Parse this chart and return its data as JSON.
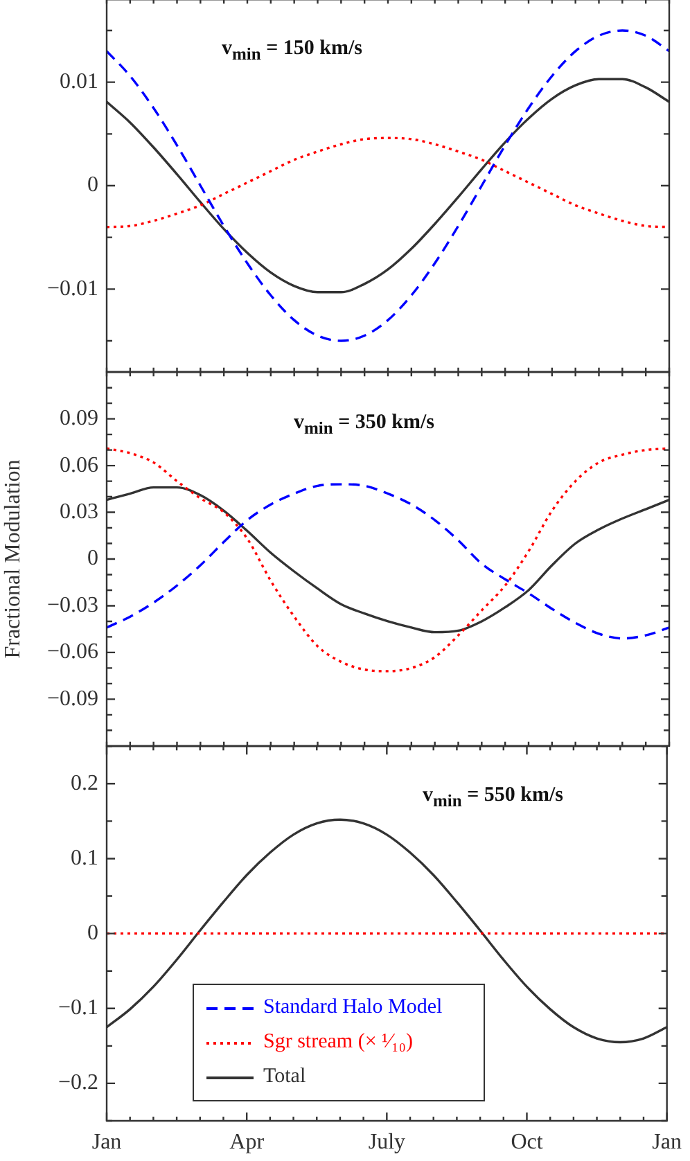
{
  "chart_data": [
    {
      "type": "line",
      "annotations": [
        "v$_{min}$ = 150 km/s"
      ],
      "categories": [
        null,
        null,
        null,
        null,
        null,
        null,
        null,
        null,
        null,
        null,
        null,
        null,
        null,
        null,
        null,
        null,
        null,
        null,
        null,
        null,
        null,
        null,
        null,
        null,
        null
      ],
      "ylim": [
        -0.018,
        0.018
      ],
      "yticks": [
        {
          "value": -0.015,
          "label": null
        },
        {
          "value": -0.01,
          "label": "−0.01"
        },
        {
          "value": -0.005,
          "label": null
        },
        0,
        {
          "value": 0.005,
          "label": null
        },
        0.01,
        {
          "value": 0.015,
          "label": null
        }
      ],
      "tick_labels": "y",
      "series": [
        {
          "color": "#0000ff",
          "line_style": "dashed",
          "values": [
            0.013,
            0.0106,
            0.0075,
            0.0039,
            0,
            -0.0039,
            -0.0075,
            -0.0106,
            -0.013,
            -0.0145,
            -0.015,
            -0.0145,
            -0.013,
            -0.0106,
            -0.0075,
            -0.0039,
            0,
            0.0039,
            0.0075,
            0.0106,
            0.013,
            0.0145,
            0.015,
            0.0145,
            0.013
          ]
        },
        {
          "color": "#ff0000",
          "line_style": "dotted",
          "values": [
            -0.004,
            -0.0039,
            -0.0034,
            -0.0027,
            -0.0019,
            -0.0008,
            0.0003,
            0.0014,
            0.0025,
            0.0033,
            0.004,
            0.0045,
            0.0046,
            0.0045,
            0.004,
            0.0033,
            0.0025,
            0.0014,
            0.0003,
            -0.0008,
            -0.0019,
            -0.0027,
            -0.0034,
            -0.0039,
            -0.004
          ]
        },
        {
          "color": "#333333",
          "line_style": "solid",
          "values": [
            0.0081,
            0.0061,
            0.0037,
            0.0011,
            -0.0016,
            -0.0042,
            -0.0065,
            -0.0084,
            -0.0097,
            -0.0103,
            -0.0103,
            -0.0095,
            -0.0081,
            -0.0061,
            -0.0037,
            -0.0011,
            0.0016,
            0.0042,
            0.0065,
            0.0084,
            0.0097,
            0.0103,
            0.0103,
            0.0095,
            0.0081
          ]
        }
      ]
    },
    {
      "type": "line",
      "ylabel": "Fractional Modulation",
      "annotations": [
        "v$_{min}$ = 350 km/s"
      ],
      "categories": [
        null,
        null,
        null,
        null,
        null,
        null,
        null,
        null,
        null,
        null,
        null,
        null,
        null,
        null,
        null,
        null,
        null,
        null,
        null,
        null,
        null,
        null,
        null,
        null,
        null
      ],
      "ylim": [
        -0.12,
        0.12
      ],
      "yticks": [
        {
          "value": -0.11,
          "label": null
        },
        {
          "value": -0.1,
          "label": null
        },
        {
          "value": -0.09,
          "label": "−0.09"
        },
        {
          "value": -0.08,
          "label": null
        },
        {
          "value": -0.07,
          "label": null
        },
        {
          "value": -0.06,
          "label": "−0.06"
        },
        {
          "value": -0.05,
          "label": null
        },
        {
          "value": -0.04,
          "label": null
        },
        {
          "value": -0.03,
          "label": "−0.03"
        },
        {
          "value": -0.02,
          "label": null
        },
        {
          "value": -0.01,
          "label": null
        },
        0,
        {
          "value": 0.01,
          "label": null
        },
        {
          "value": 0.02,
          "label": null
        },
        0.03,
        {
          "value": 0.04,
          "label": null
        },
        {
          "value": 0.05,
          "label": null
        },
        0.06,
        {
          "value": 0.07,
          "label": null
        },
        {
          "value": 0.08,
          "label": null
        },
        0.09,
        {
          "value": 0.1,
          "label": null
        },
        {
          "value": 0.11,
          "label": null
        }
      ],
      "tick_labels": "y",
      "series": [
        {
          "color": "#0000ff",
          "line_style": "dashed",
          "values": [
            -0.044,
            -0.037,
            -0.028,
            -0.017,
            -0.004,
            0.011,
            0.025,
            0.035,
            0.042,
            0.047,
            0.048,
            0.047,
            0.042,
            0.035,
            0.025,
            0.012,
            -0.003,
            -0.013,
            -0.022,
            -0.032,
            -0.041,
            -0.048,
            -0.051,
            -0.049,
            -0.044
          ]
        },
        {
          "color": "#ff0000",
          "line_style": "dotted",
          "values": [
            0.071,
            0.068,
            0.062,
            0.05,
            0.039,
            0.03,
            0.013,
            -0.014,
            -0.037,
            -0.056,
            -0.066,
            -0.071,
            -0.072,
            -0.07,
            -0.063,
            -0.049,
            -0.033,
            -0.017,
            0.005,
            0.031,
            0.05,
            0.062,
            0.067,
            0.07,
            0.071
          ]
        },
        {
          "color": "#333333",
          "line_style": "solid",
          "values": [
            0.038,
            0.042,
            0.046,
            0.046,
            0.041,
            0.031,
            0.018,
            0.004,
            -0.008,
            -0.019,
            -0.029,
            -0.035,
            -0.04,
            -0.044,
            -0.047,
            -0.046,
            -0.04,
            -0.031,
            -0.02,
            -0.004,
            0.01,
            0.019,
            0.026,
            0.032,
            0.038
          ]
        }
      ]
    },
    {
      "type": "line",
      "annotations": [
        "v$_{min}$ = 550 km/s"
      ],
      "categories": [
        "Jan",
        null,
        null,
        null,
        null,
        null,
        "Apr",
        null,
        null,
        null,
        null,
        null,
        "July",
        null,
        null,
        null,
        null,
        null,
        "Oct",
        null,
        null,
        null,
        null,
        null,
        "Jan"
      ],
      "ylim": [
        -0.25,
        0.25
      ],
      "yticks": [
        {
          "value": -0.25,
          "label": null
        },
        {
          "value": -0.2,
          "label": "−0.2"
        },
        {
          "value": -0.15,
          "label": null
        },
        {
          "value": -0.1,
          "label": "−0.1"
        },
        {
          "value": -0.05,
          "label": null
        },
        0,
        {
          "value": 0.05,
          "label": null
        },
        0.1,
        {
          "value": 0.15,
          "label": null
        },
        0.2,
        {
          "value": 0.25,
          "label": null
        }
      ],
      "legend": "bottom left",
      "series": [
        {
          "name": "Standard Halo Model",
          "color": "#0000ff",
          "line_style": "dashed",
          "values": [
            null,
            null,
            null,
            null,
            null,
            null,
            null,
            null,
            null,
            null,
            null,
            null,
            null,
            null,
            null,
            null,
            null,
            null,
            null,
            null,
            null,
            null,
            null,
            null,
            null
          ]
        },
        {
          "name": "Sgr stream (× ¹⁄₁₀)",
          "color": "#ff0000",
          "line_style": "dotted",
          "values": [
            0,
            0,
            0,
            0,
            0,
            0,
            0,
            0,
            0,
            0,
            0,
            0,
            0,
            0,
            0,
            0,
            0,
            0,
            0,
            0,
            0,
            0,
            0,
            0,
            0
          ]
        },
        {
          "name": "Total",
          "color": "#333333",
          "line_style": "solid",
          "values": [
            -0.125,
            -0.101,
            -0.071,
            -0.035,
            0.004,
            0.042,
            0.078,
            0.108,
            0.132,
            0.147,
            0.152,
            0.147,
            0.132,
            0.108,
            0.078,
            0.042,
            0.004,
            -0.035,
            -0.071,
            -0.101,
            -0.125,
            -0.14,
            -0.145,
            -0.14,
            -0.125
          ]
        }
      ]
    }
  ]
}
